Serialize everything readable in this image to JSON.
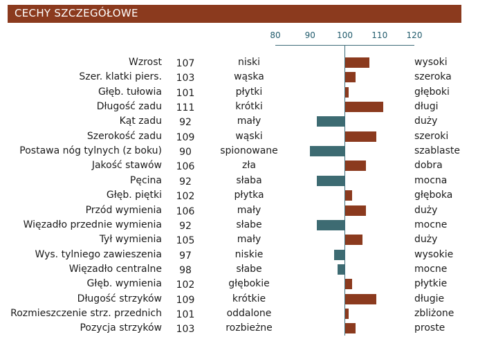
{
  "header": {
    "title": "CECHY SZCZEGÓŁOWE"
  },
  "colors": {
    "header_bg": "#8b3a1e",
    "above_baseline": "#8b3a1e",
    "below_baseline": "#3d6b72",
    "axis": "#3c6a78"
  },
  "chart_data": {
    "type": "bar",
    "orientation": "horizontal",
    "title": "CECHY SZCZEGÓŁOWE",
    "baseline": 100,
    "xlim": [
      80,
      120
    ],
    "xticks": [
      80,
      90,
      100,
      110,
      120
    ],
    "categories": [
      "Wzrost",
      "Szer. klatki piers.",
      "Głęb. tułowia",
      "Długość zadu",
      "Kąt zadu",
      "Szerokość zadu",
      "Postawa nóg tylnych (z boku)",
      "Jakość stawów",
      "Pęcina",
      "Głęb. piętki",
      "Przód wymienia",
      "Więzadło przednie wymienia",
      "Tył wymienia",
      "Wys. tylniego zawieszenia",
      "Więzadło centralne",
      "Głęb. wymienia",
      "Długość strzyków",
      "Rozmieszczenie strz. przednich",
      "Pozycja strzyków"
    ],
    "values": [
      107,
      103,
      101,
      111,
      92,
      109,
      90,
      106,
      92,
      102,
      106,
      92,
      105,
      97,
      98,
      102,
      109,
      101,
      103
    ],
    "low_labels": [
      "niski",
      "wąska",
      "płytki",
      "krótki",
      "mały",
      "wąski",
      "spionowane",
      "zła",
      "słaba",
      "płytka",
      "mały",
      "słabe",
      "mały",
      "niskie",
      "słabe",
      "głębokie",
      "krótkie",
      "oddalone",
      "rozbieżne"
    ],
    "high_labels": [
      "wysoki",
      "szeroka",
      "głęboki",
      "długi",
      "duży",
      "szeroki",
      "szablaste",
      "dobra",
      "mocna",
      "głęboka",
      "duży",
      "mocne",
      "duży",
      "wysokie",
      "mocne",
      "płytkie",
      "długie",
      "zbliżone",
      "proste"
    ]
  }
}
